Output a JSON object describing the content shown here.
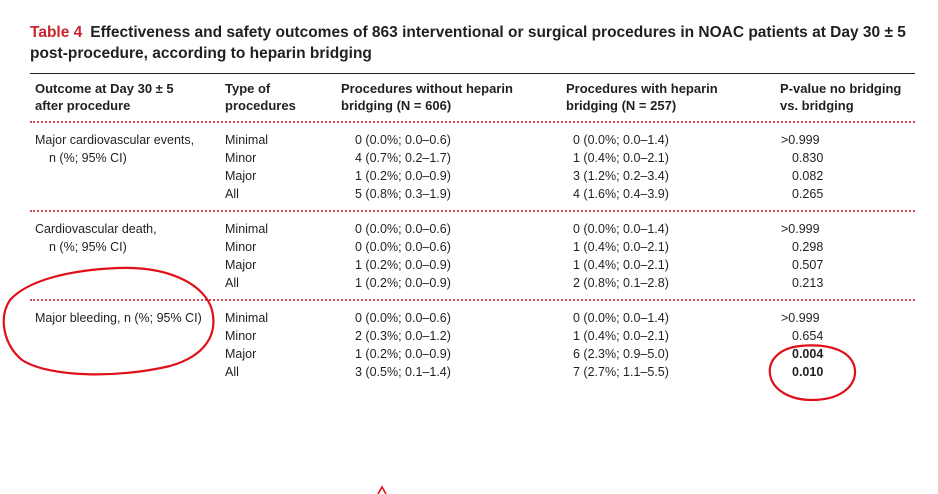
{
  "table": {
    "label": "Table 4",
    "title": "Effectiveness and safety outcomes of 863 interventional or surgical procedures in NOAC patients at Day 30 ± 5 post-procedure, according to heparin bridging",
    "headers": {
      "outcome": [
        "Outcome at Day 30 ± 5",
        "after procedure"
      ],
      "type": [
        "Type of",
        "procedures"
      ],
      "without": [
        "Procedures without heparin",
        "bridging (N = 606)"
      ],
      "with": [
        "Procedures with heparin",
        "bridging (N = 257)"
      ],
      "pvalue": [
        "P-value no bridging",
        "vs. bridging"
      ]
    },
    "groups": [
      {
        "outcome_line1": "Major cardiovascular events,",
        "outcome_line2": "n (%; 95% CI)",
        "rows": [
          {
            "type": "Minimal",
            "without": "0 (0.0%; 0.0–0.6)",
            "with": "0 (0.0%; 0.0–1.4)",
            "p": ">0.999"
          },
          {
            "type": "Minor",
            "without": "4 (0.7%; 0.2–1.7)",
            "with": "1 (0.4%; 0.0–2.1)",
            "p": "0.830"
          },
          {
            "type": "Major",
            "without": "1 (0.2%; 0.0–0.9)",
            "with": "3 (1.2%; 0.2–3.4)",
            "p": "0.082"
          },
          {
            "type": "All",
            "without": "5 (0.8%; 0.3–1.9)",
            "with": "4 (1.6%; 0.4–3.9)",
            "p": "0.265"
          }
        ]
      },
      {
        "outcome_line1": "Cardiovascular death,",
        "outcome_line2": "n (%; 95% CI)",
        "rows": [
          {
            "type": "Minimal",
            "without": "0 (0.0%; 0.0–0.6)",
            "with": "0 (0.0%; 0.0–1.4)",
            "p": ">0.999"
          },
          {
            "type": "Minor",
            "without": "0 (0.0%; 0.0–0.6)",
            "with": "1 (0.4%; 0.0–2.1)",
            "p": "0.298"
          },
          {
            "type": "Major",
            "without": "1 (0.2%; 0.0–0.9)",
            "with": "1 (0.4%; 0.0–2.1)",
            "p": "0.507"
          },
          {
            "type": "All",
            "without": "1 (0.2%; 0.0–0.9)",
            "with": "2 (0.8%; 0.1–2.8)",
            "p": "0.213"
          }
        ]
      },
      {
        "outcome_line1": "Major bleeding, n (%; 95% CI)",
        "outcome_line2": "",
        "rows": [
          {
            "type": "Minimal",
            "without": "0 (0.0%; 0.0–0.6)",
            "with": "0 (0.0%; 0.0–1.4)",
            "p": ">0.999"
          },
          {
            "type": "Minor",
            "without": "2 (0.3%; 0.0–1.2)",
            "with": "1 (0.4%; 0.0–2.1)",
            "p": "0.654"
          },
          {
            "type": "Major",
            "without": "1 (0.2%; 0.0–0.9)",
            "with": "6 (2.3%; 0.9–5.0)",
            "p": "0.004"
          },
          {
            "type": "All",
            "without": "3 (0.5%; 0.1–1.4)",
            "with": "7 (2.7%; 1.1–5.5)",
            "p": "0.010"
          }
        ]
      }
    ]
  },
  "colors": {
    "title_label": "#c8252c",
    "text": "#231f20",
    "dotted_rule": "#d34a4a",
    "annotation": "#e0101a"
  }
}
